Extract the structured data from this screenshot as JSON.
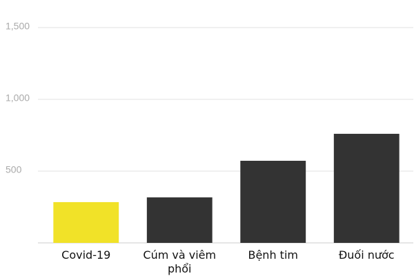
{
  "chart_data": {
    "type": "bar",
    "categories": [
      "Covid-19",
      "Cúm và viêm phổi",
      "Bệnh tim",
      "Đuối nước"
    ],
    "values": [
      284,
      317,
      572,
      760
    ],
    "colors": [
      "#f1e228",
      "#333333",
      "#333333",
      "#333333"
    ],
    "ylim": [
      0,
      1500
    ],
    "yticks": [
      500,
      {
        "value": 1000,
        "label": "1,000"
      },
      {
        "value": 1500,
        "label": "1,500"
      }
    ],
    "grid": true
  }
}
